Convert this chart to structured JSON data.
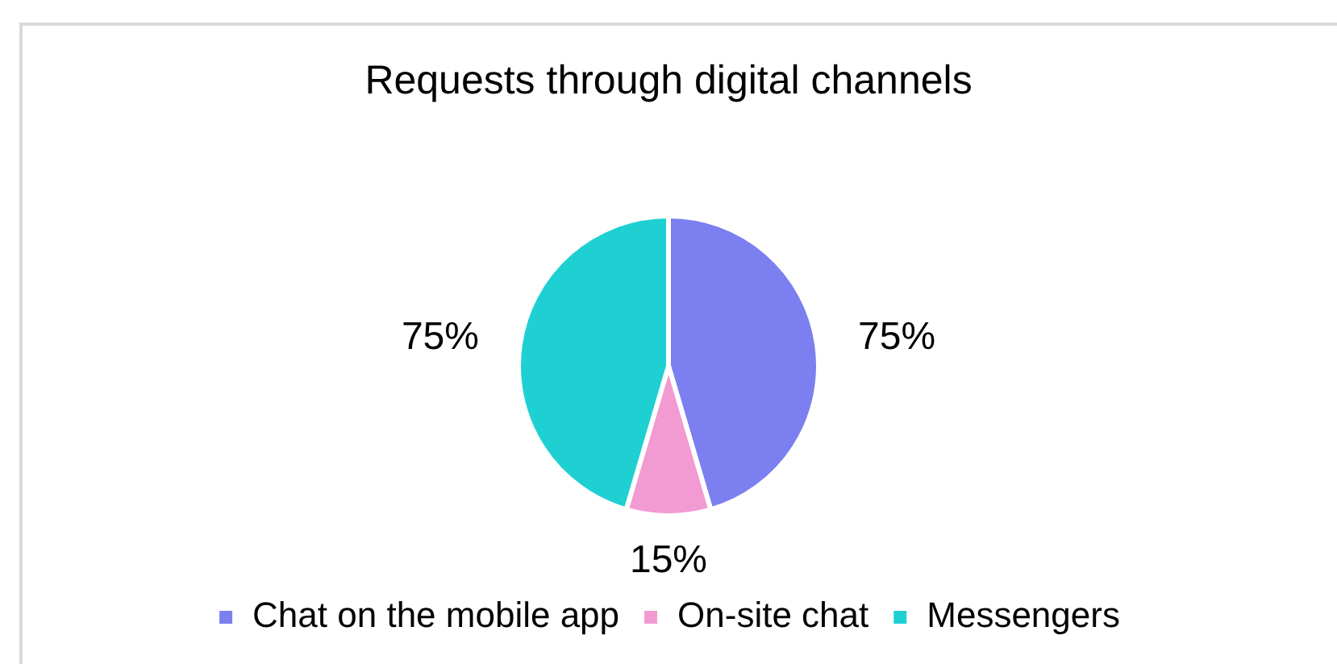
{
  "chart_data": {
    "type": "pie",
    "title": "Requests through digital channels",
    "categories": [
      "Chat on the mobile app",
      "On-site chat",
      "Messengers"
    ],
    "values": [
      75,
      15,
      75
    ],
    "colors": [
      "#7b7ff0",
      "#f29ad2",
      "#1fd0d3"
    ],
    "value_labels": [
      "75%",
      "15%",
      "75%"
    ],
    "legend": "bottom"
  }
}
